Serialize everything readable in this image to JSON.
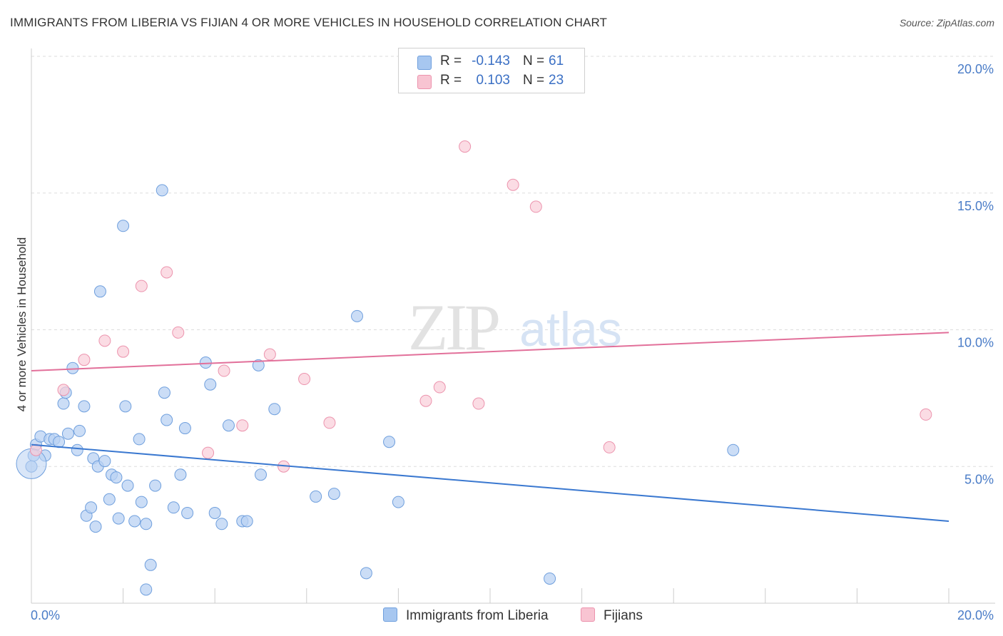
{
  "header": {
    "title": "IMMIGRANTS FROM LIBERIA VS FIJIAN 4 OR MORE VEHICLES IN HOUSEHOLD CORRELATION CHART",
    "source": "Source: ZipAtlas.com"
  },
  "watermark": {
    "zip": "ZIP",
    "atlas": "atlas"
  },
  "legend": {
    "rows": [
      {
        "r_label": "R =",
        "r_value": "-0.143",
        "n_label": "N =",
        "n_value": "61",
        "color": "#a7c7f0",
        "border": "#6f9fdd"
      },
      {
        "r_label": "R =",
        "r_value": "0.103",
        "n_label": "N =",
        "n_value": "23",
        "color": "#f8c4d2",
        "border": "#ec93ad"
      }
    ]
  },
  "bottom_legend": {
    "liberia": "Immigrants from Liberia",
    "fijians": "Fijians"
  },
  "chart_data": {
    "type": "scatter",
    "title": "IMMIGRANTS FROM LIBERIA VS FIJIAN 4 OR MORE VEHICLES IN HOUSEHOLD CORRELATION CHART",
    "xlabel": "",
    "ylabel": "4 or more Vehicles in Household",
    "xlim": [
      0,
      20
    ],
    "ylim": [
      0,
      20
    ],
    "x_tick_labels": [
      "0.0%",
      "20.0%"
    ],
    "y_tick_labels": [
      "5.0%",
      "10.0%",
      "15.0%",
      "20.0%"
    ],
    "y_tick_values": [
      5,
      10,
      15,
      20
    ],
    "grid": true,
    "legend_placement": "top-center",
    "colors": {
      "liberia": "#6f9fdd",
      "liberia_fill": "#b9d2f3",
      "fijians": "#ec93ad",
      "fijians_fill": "#f9cdd9",
      "liberia_line": "#3a78d0",
      "fijians_line": "#e2709a"
    },
    "series": [
      {
        "name": "Immigrants from Liberia",
        "r": -0.143,
        "n": 61,
        "trend": {
          "x": [
            0,
            20
          ],
          "y": [
            5.8,
            3.0
          ]
        },
        "points": [
          [
            0.05,
            5.4
          ],
          [
            0.1,
            5.8
          ],
          [
            0.2,
            6.1
          ],
          [
            0.3,
            5.4
          ],
          [
            0.4,
            6.0
          ],
          [
            0.5,
            6.0
          ],
          [
            0.6,
            5.9
          ],
          [
            0.7,
            7.3
          ],
          [
            0.75,
            7.7
          ],
          [
            0.8,
            6.2
          ],
          [
            0.9,
            8.6
          ],
          [
            1.0,
            5.6
          ],
          [
            1.05,
            6.3
          ],
          [
            1.15,
            7.2
          ],
          [
            1.2,
            3.2
          ],
          [
            1.3,
            3.5
          ],
          [
            1.35,
            5.3
          ],
          [
            1.45,
            5.0
          ],
          [
            1.5,
            11.4
          ],
          [
            1.6,
            5.2
          ],
          [
            1.7,
            3.8
          ],
          [
            1.75,
            4.7
          ],
          [
            1.85,
            4.6
          ],
          [
            1.9,
            3.1
          ],
          [
            2.0,
            13.8
          ],
          [
            2.05,
            7.2
          ],
          [
            2.1,
            4.3
          ],
          [
            2.25,
            3.0
          ],
          [
            2.35,
            6.0
          ],
          [
            2.4,
            3.7
          ],
          [
            2.5,
            2.9
          ],
          [
            2.6,
            1.4
          ],
          [
            2.7,
            4.3
          ],
          [
            2.85,
            15.1
          ],
          [
            2.9,
            7.7
          ],
          [
            2.95,
            6.7
          ],
          [
            3.1,
            3.5
          ],
          [
            3.25,
            4.7
          ],
          [
            3.35,
            6.4
          ],
          [
            3.4,
            3.3
          ],
          [
            3.8,
            8.8
          ],
          [
            3.9,
            8.0
          ],
          [
            4.0,
            3.3
          ],
          [
            4.15,
            2.9
          ],
          [
            4.3,
            6.5
          ],
          [
            4.6,
            3.0
          ],
          [
            4.7,
            3.0
          ],
          [
            4.95,
            8.7
          ],
          [
            5.0,
            4.7
          ],
          [
            5.3,
            7.1
          ],
          [
            6.2,
            3.9
          ],
          [
            6.6,
            4.0
          ],
          [
            7.1,
            10.5
          ],
          [
            7.3,
            1.1
          ],
          [
            7.8,
            5.9
          ],
          [
            8.0,
            3.7
          ],
          [
            11.3,
            0.9
          ],
          [
            15.3,
            5.6
          ],
          [
            2.5,
            0.5
          ],
          [
            0.0,
            5.0
          ],
          [
            1.4,
            2.8
          ]
        ]
      },
      {
        "name": "Fijians",
        "r": 0.103,
        "n": 23,
        "trend": {
          "x": [
            0,
            20
          ],
          "y": [
            8.5,
            9.9
          ]
        },
        "points": [
          [
            0.1,
            5.6
          ],
          [
            0.7,
            7.8
          ],
          [
            1.15,
            8.9
          ],
          [
            1.6,
            9.6
          ],
          [
            2.0,
            9.2
          ],
          [
            2.4,
            11.6
          ],
          [
            2.95,
            12.1
          ],
          [
            3.2,
            9.9
          ],
          [
            3.85,
            5.5
          ],
          [
            4.2,
            8.5
          ],
          [
            4.6,
            6.5
          ],
          [
            5.2,
            9.1
          ],
          [
            5.5,
            5.0
          ],
          [
            5.95,
            8.2
          ],
          [
            6.5,
            6.6
          ],
          [
            8.6,
            7.4
          ],
          [
            8.9,
            7.9
          ],
          [
            9.45,
            16.7
          ],
          [
            9.75,
            7.3
          ],
          [
            10.5,
            15.3
          ],
          [
            11.0,
            14.5
          ],
          [
            12.6,
            5.7
          ],
          [
            19.5,
            6.9
          ]
        ]
      }
    ]
  }
}
